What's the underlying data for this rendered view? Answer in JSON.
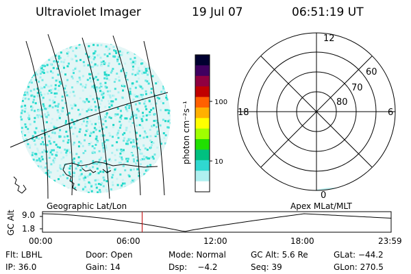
{
  "header": {
    "title": "Ultraviolet Imager",
    "date": "19 Jul 07",
    "time": "06:51:19 UT"
  },
  "colorbar": {
    "label": "photon cm⁻²s⁻¹",
    "ticks": [
      "100",
      "10"
    ],
    "colors": [
      "#000030",
      "#400060",
      "#900040",
      "#c00000",
      "#ff6000",
      "#ffb000",
      "#ffff00",
      "#a0ff00",
      "#20e000",
      "#00c080",
      "#30d8d0",
      "#b0f0f0",
      "#ffffff"
    ]
  },
  "polar_plot": {
    "latitude_labels": [
      "60",
      "70",
      "80"
    ],
    "mlt_labels": {
      "top": "12",
      "left": "18",
      "right": "6",
      "bottom": "0"
    }
  },
  "altitude_plot": {
    "left_label": "Geographic Lat/Lon",
    "right_label": "Apex  MLat/MLT",
    "axis_title": "GC Alt",
    "ytick_top": "9.0",
    "ytick_bottom": "1.8",
    "xticks": [
      "00:00",
      "06:00",
      "12:00",
      "18:00",
      "23:59"
    ],
    "current_time_marker_hours": 6.86,
    "curve_color": "#000000",
    "marker_color": "#c00000"
  },
  "info": {
    "row1": [
      {
        "label": "Flt: LBHL"
      },
      {
        "label": "Door: Open"
      },
      {
        "label": "Mode: Normal"
      },
      {
        "label": "GC Alt: 5.6 Re"
      },
      {
        "label": "GLat: −44.2"
      }
    ],
    "row2": [
      {
        "label": "IP: 36.0"
      },
      {
        "label": "Gain: 14"
      },
      {
        "label": "Dsp:    −4.2"
      },
      {
        "label": "Seq: 39"
      },
      {
        "label": "GLon: 270.5"
      }
    ]
  }
}
